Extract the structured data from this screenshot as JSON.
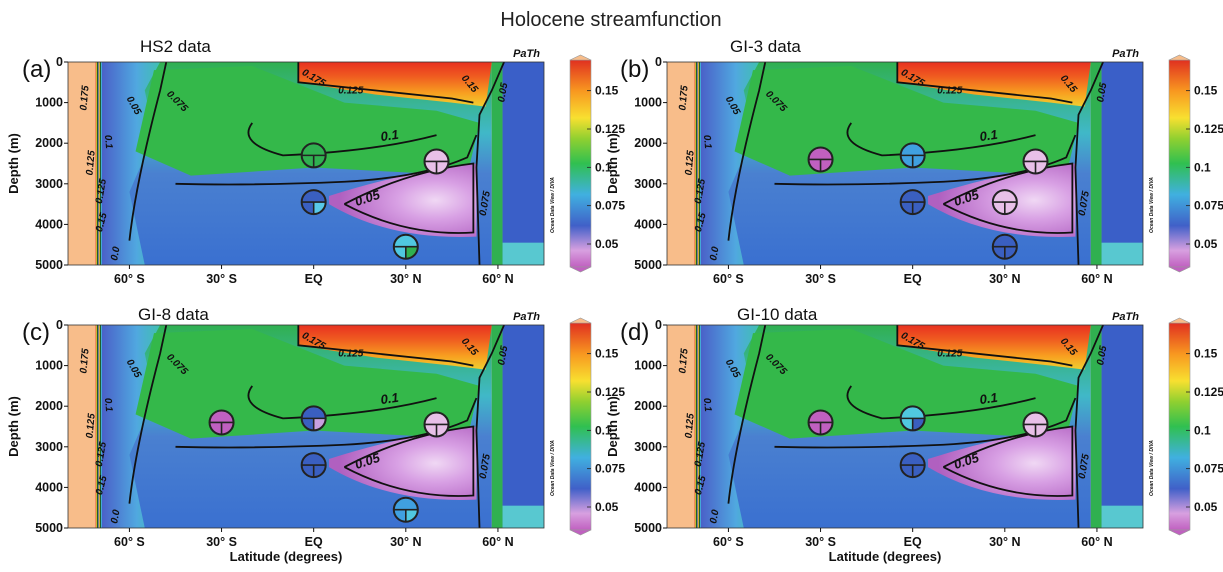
{
  "chart_data": {
    "type": "heatmap",
    "title": "Holocene streamfunction",
    "shared": {
      "ylabel": "Depth (m)",
      "xlabel": "Latitude (degrees)",
      "y_ticks": [
        "0",
        "1000",
        "2000",
        "3000",
        "4000",
        "5000"
      ],
      "y_tick_values": [
        0,
        1000,
        2000,
        3000,
        4000,
        5000
      ],
      "x_ticks": [
        "60° S",
        "30° S",
        "EQ",
        "30° N",
        "60° N"
      ],
      "x_tick_values": [
        -60,
        -30,
        0,
        30,
        60
      ],
      "xlim": [
        -80,
        75
      ],
      "ylim": [
        5000,
        0
      ],
      "colorbar_ticks": [
        "0.15",
        "0.125",
        "0.1",
        "0.075",
        "0.05"
      ],
      "colorbar_values": [
        0.15,
        0.125,
        0.1,
        0.075,
        0.05
      ],
      "colorbar_range": [
        0.035,
        0.17
      ],
      "colorbar_caption": "Ocean Data View / DIVA",
      "method_label": "PaTh",
      "contour_labels_main": [
        "0.1",
        "0.05"
      ],
      "contour_labels_small": [
        "0.175",
        "0.15",
        "0.125",
        "0.075",
        "0.15",
        "0.125",
        "0.075",
        "0.05",
        "0.125",
        "0.175",
        "0.05",
        "0.1",
        "0.0"
      ],
      "colors": {
        "sea_land": "#f8bd8a",
        "colorscale": [
          "#c060c0",
          "#d8a0e0",
          "#4060c8",
          "#40b0e0",
          "#30c050",
          "#90d030",
          "#f8e030",
          "#f89820",
          "#e03020"
        ]
      }
    },
    "panels": [
      {
        "letter": "(a)",
        "subtitle": "HS2 data",
        "sites": [
          {
            "lat": 0,
            "depth": 2300,
            "value": 0.1,
            "colors": [
              "#30b050",
              "#30b050",
              "#30b050"
            ]
          },
          {
            "lat": 0,
            "depth": 3450,
            "value": 0.07,
            "colors": [
              "#3a5fc0",
              "#3a5fc0",
              "#58c8e8"
            ]
          },
          {
            "lat": 40,
            "depth": 2450,
            "value": 0.04,
            "colors": [
              "#e8c0e8",
              "#e8c0e8",
              "#e8c0e8"
            ]
          },
          {
            "lat": 30,
            "depth": 4550,
            "value": 0.085,
            "colors": [
              "#50c8e0",
              "#50c8e0",
              "#30b050"
            ]
          }
        ]
      },
      {
        "letter": "(b)",
        "subtitle": "GI-3 data",
        "sites": [
          {
            "lat": -30,
            "depth": 2400,
            "value": 0.04,
            "colors": [
              "#c060c0",
              "#c060c0",
              "#c060c0"
            ]
          },
          {
            "lat": 0,
            "depth": 2300,
            "value": 0.08,
            "colors": [
              "#40a0e0",
              "#40a0e0",
              "#40a0e0"
            ]
          },
          {
            "lat": 40,
            "depth": 2450,
            "value": 0.04,
            "colors": [
              "#e8c0e8",
              "#e8c0e8",
              "#e8c0e8"
            ]
          },
          {
            "lat": 0,
            "depth": 3450,
            "value": 0.065,
            "colors": [
              "#3a5fc0",
              "#3a5fc0",
              "#3a5fc0"
            ]
          },
          {
            "lat": 30,
            "depth": 3450,
            "value": 0.04,
            "colors": [
              "#e8c0e8",
              "#e8c0e8",
              "#e8c0e8"
            ]
          },
          {
            "lat": 30,
            "depth": 4550,
            "value": 0.065,
            "colors": [
              "#3a5fc0",
              "#3a5fc0",
              "#3a5fc0"
            ]
          }
        ]
      },
      {
        "letter": "(c)",
        "subtitle": "GI-8 data",
        "sites": [
          {
            "lat": -30,
            "depth": 2400,
            "value": 0.04,
            "colors": [
              "#c060c0",
              "#c060c0",
              "#c060c0"
            ]
          },
          {
            "lat": 0,
            "depth": 2300,
            "value": 0.07,
            "colors": [
              "#3a5fc0",
              "#3a5fc0",
              "#c8a0e0"
            ]
          },
          {
            "lat": 40,
            "depth": 2450,
            "value": 0.04,
            "colors": [
              "#e8c0e8",
              "#e8c0e8",
              "#e8c0e8"
            ]
          },
          {
            "lat": 0,
            "depth": 3450,
            "value": 0.065,
            "colors": [
              "#3a5fc0",
              "#3a5fc0",
              "#3a5fc0"
            ]
          },
          {
            "lat": 30,
            "depth": 4550,
            "value": 0.075,
            "colors": [
              "#40a0e0",
              "#40a0e0",
              "#50c8e0"
            ]
          }
        ]
      },
      {
        "letter": "(d)",
        "subtitle": "GI-10 data",
        "sites": [
          {
            "lat": -30,
            "depth": 2400,
            "value": 0.04,
            "colors": [
              "#c060c0",
              "#c060c0",
              "#c060c0"
            ]
          },
          {
            "lat": 0,
            "depth": 2300,
            "value": 0.08,
            "colors": [
              "#50c8e0",
              "#50c8e0",
              "#3a5fc0"
            ]
          },
          {
            "lat": 40,
            "depth": 2450,
            "value": 0.04,
            "colors": [
              "#e8c0e8",
              "#e8c0e8",
              "#e8c0e8"
            ]
          },
          {
            "lat": 0,
            "depth": 3450,
            "value": 0.065,
            "colors": [
              "#3a5fc0",
              "#3a5fc0",
              "#3a5fc0"
            ]
          }
        ]
      }
    ]
  }
}
